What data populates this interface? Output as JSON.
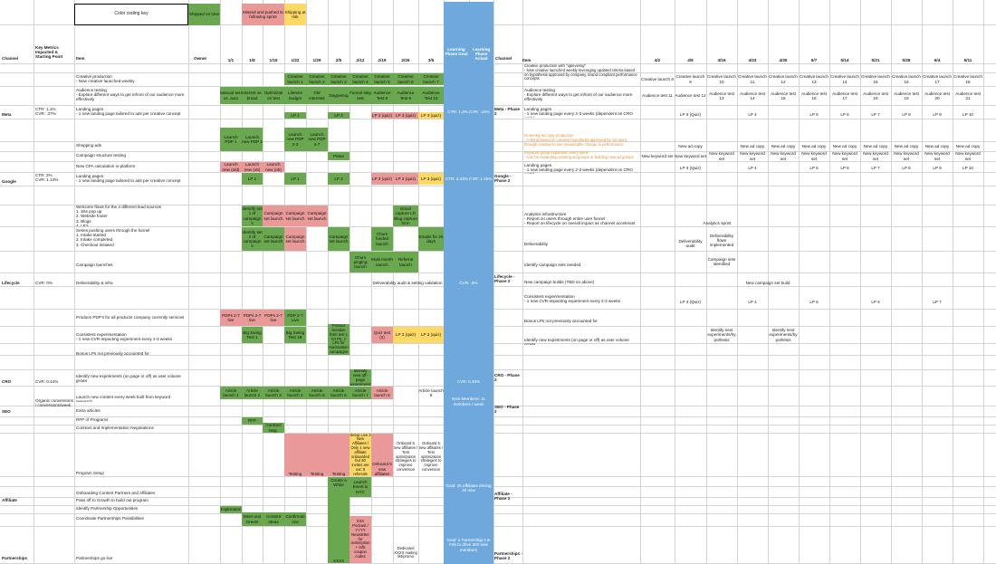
{
  "key": {
    "title": "Color coding key",
    "shipped": "Shipped on time",
    "missed": "Missed and pushed to following sprint",
    "risk": "Shipping at risk"
  },
  "headers": {
    "channel": "Channel",
    "metrics": "Key Metrics Impacted & Starting Point",
    "item": "Item",
    "owner": "Owner",
    "dates1": [
      "1/1",
      "1/8",
      "1/15",
      "1/22",
      "1/29",
      "2/5",
      "2/12",
      "2/19",
      "2/26",
      "3/5"
    ],
    "goal": "Learning Phase Goal",
    "actual": "Learning Phase Actual",
    "channel2": "Channel",
    "item2": "Item",
    "dates2": [
      "4/2",
      "4/9",
      "4/16",
      "4/23",
      "4/30",
      "5/7",
      "5/14",
      "5/21",
      "5/28",
      "6/4",
      "6/11"
    ]
  },
  "channels": {
    "meta": "Meta",
    "google": "Google",
    "lifecycle": "Lifecycle",
    "cro": "CRO",
    "seo": "SEO",
    "affiliate": "Affiliate",
    "partnerships": "Partnerships"
  },
  "metrics": {
    "meta": "CTR: 1.1%\nCVR: .37%",
    "google": "CTR: 2%\nCVR: 1.13%",
    "lifecycle": "CVR: 0%",
    "cro": "CVR: 0.44%",
    "seo": "Organic conversions / conversions/week"
  },
  "items": {
    "meta": [
      "Creative production\n- New creative launched weekly",
      "Audience testing\n- Explore different ways to get infront of our audience more effectively",
      "Landing pages\n- 1 new landing page tailored to ads per creative concept"
    ],
    "google": [
      "Shopping ads",
      "Campaign structure testing",
      "New CPA calculation in-platform",
      "Landing pages\n- 1 new landing page tailored to ads per creative concept"
    ],
    "lifecycle": [
      "Welcome flows for the 4 different lead sources\n1. Site pop up\n2. Website footer\n3. Blogs\n4. LP's",
      "Series pushing users through the funnel\n1. Intake started\n2. Intake completed\n3. Checkout initiated",
      "Campaign launches",
      "Deliverability & infra"
    ],
    "cro": [
      "Produce PDP's for all products company currently services",
      "Consistent experimentation\n- 1 new CVR-impacting experiment every 2-3 weeks",
      "Bonus LPs not previously accounted for",
      "Identify new experiments (on page or off) as user volume grows"
    ],
    "seo": [
      "Launch new content every week built from keyword research",
      "Extra articles"
    ],
    "affiliate": [
      "RFP of Programs",
      "Contract and Implementation Negotiations",
      "Program Setup",
      "Onboarding Content Partners and Affiliates",
      "Pass off to Growth to build out program"
    ],
    "partnerships": [
      "Identify Partnership Opportunities",
      "Coordinate Partnerships Possibilities",
      "Partnerships go live"
    ]
  },
  "cells": {
    "meta_creative": [
      "Creative launch 1",
      "Creative launch 2",
      "Creative launch 3",
      "Creative launch 4",
      "Creative launch 5",
      "Creative launch 6",
      "Creative launch 7"
    ],
    "meta_audience": [
      "Manual test vs. auto",
      "Interest vs. broad",
      "Optimizati on test",
      "Lifetime budget",
      "Old interests",
      "Daypartng",
      "Funnel step test",
      "Audience Test 8",
      "Audience Test 9",
      "Audience Test 10"
    ],
    "meta_lp": [
      "LP 1",
      "LP 2",
      "LP 3 (quiz)",
      "LP 3 (quiz)",
      "LP 3 (quiz)"
    ],
    "google_shop": [
      "Launch PDP 1",
      "Launch new PDP 2",
      "Launch new PDP 2-3",
      "Launch new PDP 4-7"
    ],
    "google_pmax": "PMax",
    "google_cpa": [
      "Launch new (old)",
      "Launch new (ob)",
      "Launch new (ob)"
    ],
    "google_lp": [
      "LP 1",
      "LP 1",
      "LP 2",
      "LP 3 (quiz)",
      "LP 3 (quiz)",
      "LP 3 (quiz)"
    ],
    "life_welcome": [
      "Identify set 1 of campaign s",
      "Campaign set launch",
      "Campaign set launch",
      "Campaign set launch",
      "Email capture LP, Blog capture form"
    ],
    "life_series": [
      "Identify set 2 of campaign s",
      "Campaign set launch",
      "Campaign set launch",
      "Campaign set launch",
      "Churn funded launch",
      "Emails for 20 days"
    ],
    "life_launch": [
      "Churn pinging launch",
      "Multi month launch",
      "Referral launch"
    ],
    "life_deliv": "Deliverability audit & setting validation",
    "cro_pdp": [
      "PDPs 2-7 live",
      "PDPs 2-7 live",
      "PDPs 2-7 live",
      "PDP 2-7 Live"
    ],
    "cro_exp": [
      "Big Swing Test 1",
      "Big Swing Test 1B",
      "Product iteration from test 1 for P0, 2 LPs for reactivation campaigns",
      "Quiz test (2)",
      "LP 3 (quiz)",
      "LP 3 (quiz)"
    ],
    "cro_identify": "Identify new off-page experiment",
    "seo_art": [
      "Article launch 1",
      "Article launch 2",
      "Article launch 3",
      "Article launch 4",
      "Article launch 5",
      "Article launch 6",
      "Article launch 7",
      "Article launch 8",
      "Article launch 9"
    ],
    "aff_rfp": "RFP",
    "aff_contract": "Contract Neg.",
    "aff_setup": [
      "Testing",
      "Testing",
      "Testing",
      "Setup Live 3 New Affiliates / Only 1 new affiliate onboarded but 30 invites are out; 8 referrals",
      "Onboard 5 new affiliates",
      "Onboard 5 new affiliates / Test optimization strategies to improve conversion",
      "Onboard 5 new affiliates / Test optimization strategies to improve conversion"
    ],
    "aff_onboard": [
      "Create a White Glove VIP Experience",
      "Launch Event in NYC"
    ],
    "part_identify": "Exploration",
    "part_coord": [
      "Meet and Greets",
      "Content Ideas",
      "Confirmati ons"
    ],
    "part_live": [
      "XXXX",
      "XXX Podcast / YYYY Newsletter for redemption + refb coupon codes",
      "Dedicated XXXX mailing list/promo"
    ]
  },
  "goal_actual": {
    "meta": "CTR: 1.2% CVR: .44%",
    "google": "CTR: 2.44% CVR: 1.15%",
    "lifecycle": "CVR: .5%",
    "cro": "CVR: 0.40%",
    "seo": "New Members: 11 members / week",
    "affiliate": "Goal: 15 affiliates driving 40 new",
    "partnerships": "Goal: 2 Partnership s in Feb to drive 300 new members"
  },
  "phase2": {
    "meta": "Meta - Phase 2",
    "google": "Google - Phase 2",
    "lifecycle": "Lifecycle - Phase 2",
    "cro": "CRO - Phase 2",
    "seo": "SEO - Phase 2",
    "affiliate": "Affiliate - Phase 2",
    "partnerships": "Partnerships - Phase 2"
  },
  "items2": {
    "meta": [
      "Creative production with \"upleveling\"\n- New creative launched weekly leveraging updated criteria based on hypothesis approved by company, brand compliant performance concepts",
      "Audience testing\n- Explore different ways to get infront of our audience more effectively",
      "Landing pages\n- 1 new landing page every 2-3 weeks (dependent on CRO work)"
    ],
    "google": [
      "Bi weekly ad copy production\n- Criteria based on creative hypothesis approved by company through creative to see measurable change in performance",
      "Keyword group expansion every week\n- Can be expanding existing ad groups or building new ad groups",
      "Landing pages\n- 1 new landing page every 2-3 weeks (dependent on CRO work)"
    ],
    "lifecycle": [
      "Analytics infrastructure\n- Report on users through entire user funnel\n- Report on lifecycle on overall impact as channel accelerant",
      "Deliverability",
      "Identify campaign sets needed",
      "New campaign builds (TBD on above)"
    ],
    "cro": [
      "Consistent experimentation\n- 1 new CVR-impacting experiment every 2-3 weeks",
      "Bonus LPs not previously accounted for",
      "Identify new experiments (on page or off) as user volume grows"
    ]
  },
  "cells2": {
    "creative": [
      "Creative launch 8",
      "Creative launch 9",
      "Creative launch 10",
      "Creative launch 11",
      "Creative launch 12",
      "Creative launch 13",
      "Creative launch 14",
      "Creative launch 15",
      "Creative launch 16",
      "Creative launch 17",
      "Creative launch 18"
    ],
    "audience": [
      "Audience test 11",
      "Audience test 12",
      "Audience test 13",
      "Audience test 14",
      "Audience test 15",
      "Audience test 16",
      "Audience test 17",
      "Audience test 18",
      "Audience test 19",
      "Audience test 20",
      "Audience test 21"
    ],
    "lp": [
      "LP 3 (Quiz)",
      "LP 4",
      "LP 5",
      "LP 6",
      "LP 7",
      "LP 8",
      "LP 9",
      "LP 10"
    ],
    "adcopy": [
      "New ad copy",
      "New ad copy",
      "New ad copy",
      "New ad copy",
      "New ad copy",
      "New ad copy",
      "New ad copy",
      "New ad copy",
      "New ad copy"
    ],
    "keyword": [
      "New keyword set",
      "New keyword set",
      "New keyword set",
      "New keyword set",
      "New keyword set",
      "New keyword set",
      "New keyword set",
      "New keyword set",
      "New keyword set",
      "New keyword set",
      "New keyword set"
    ],
    "glp": [
      "LP 3 (Quiz)",
      "LP 4",
      "LP 5",
      "LP 6",
      "LP 7",
      "LP 8",
      "LP 9",
      "LP 10"
    ],
    "analytics": "Analytics sprint",
    "deliv": [
      "Deliverability audit",
      "Deliverability flows implemented"
    ],
    "campsets": "Campaign sets identified",
    "newbuild": "New campaign set build",
    "cro_lp": [
      "LP 3 (Quiz)",
      "LP 4",
      "LP 5",
      "LP 6",
      "LP 7"
    ],
    "cro_identify": [
      "Identify next experiments/hy pothesis",
      "Identify next experiments/hy pothesis"
    ]
  }
}
